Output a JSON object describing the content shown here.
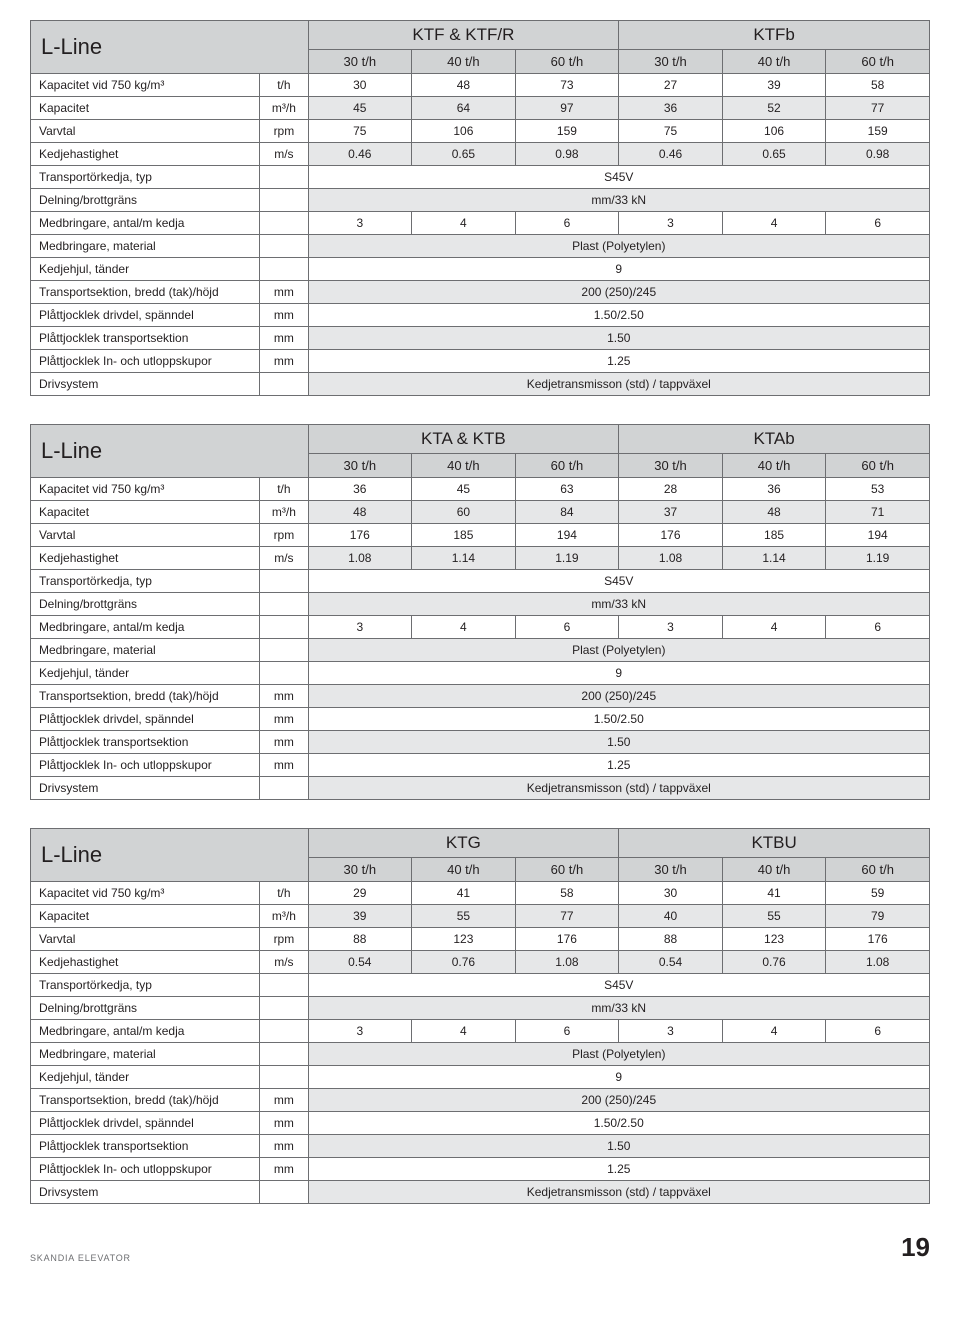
{
  "footer": {
    "brand": "SKANDIA ELEVATOR",
    "page": "19"
  },
  "common": {
    "table_title": "L-Line",
    "sub_headers": [
      "30 t/h",
      "40 t/h",
      "60 t/h",
      "30 t/h",
      "40 t/h",
      "60 t/h"
    ],
    "span_rows": {
      "transport_type": {
        "label": "Transportörkedja, typ",
        "value": "S45V"
      },
      "delning": {
        "label": "Delning/brottgräns",
        "value": "mm/33 kN"
      },
      "medbringare_antal": {
        "label": "Medbringare, antal/m kedja",
        "vals": [
          "3",
          "4",
          "6",
          "3",
          "4",
          "6"
        ]
      },
      "medbringare_material": {
        "label": "Medbringare, material",
        "value": "Plast (Polyetylen)"
      },
      "kedjehjul": {
        "label": "Kedjehjul, tänder",
        "value": "9"
      },
      "transportsektion": {
        "label": "Transportsektion, bredd (tak)/höjd",
        "unit": "mm",
        "value": "200 (250)/245"
      },
      "plat_drivdel": {
        "label": "Plåttjocklek drivdel, spänndel",
        "unit": "mm",
        "value": "1.50/2.50"
      },
      "plat_transport": {
        "label": "Plåttjocklek transportsektion",
        "unit": "mm",
        "value": "1.50"
      },
      "plat_inut": {
        "label": "Plåttjocklek In- och utloppskupor",
        "unit": "mm",
        "value": "1.25"
      },
      "drivsystem": {
        "label": "Drivsystem",
        "value": "Kedjetransmisson (std) / tappväxel"
      }
    },
    "data_row_labels": {
      "kapacitet750": {
        "label": "Kapacitet vid 750 kg/m³",
        "unit": "t/h"
      },
      "kapacitet": {
        "label": "Kapacitet",
        "unit": "m³/h"
      },
      "varvtal": {
        "label": "Varvtal",
        "unit": "rpm"
      },
      "kedjehastighet": {
        "label": "Kedjehastighet",
        "unit": "m/s"
      }
    }
  },
  "tables": [
    {
      "group1": "KTF & KTF/R",
      "group2": "KTFb",
      "kapacitet750": [
        "30",
        "48",
        "73",
        "27",
        "39",
        "58"
      ],
      "kapacitet": [
        "45",
        "64",
        "97",
        "36",
        "52",
        "77"
      ],
      "varvtal": [
        "75",
        "106",
        "159",
        "75",
        "106",
        "159"
      ],
      "kedjehastighet": [
        "0.46",
        "0.65",
        "0.98",
        "0.46",
        "0.65",
        "0.98"
      ]
    },
    {
      "group1": "KTA & KTB",
      "group2": "KTAb",
      "kapacitet750": [
        "36",
        "45",
        "63",
        "28",
        "36",
        "53"
      ],
      "kapacitet": [
        "48",
        "60",
        "84",
        "37",
        "48",
        "71"
      ],
      "varvtal": [
        "176",
        "185",
        "194",
        "176",
        "185",
        "194"
      ],
      "kedjehastighet": [
        "1.08",
        "1.14",
        "1.19",
        "1.08",
        "1.14",
        "1.19"
      ]
    },
    {
      "group1": "KTG",
      "group2": "KTBU",
      "kapacitet750": [
        "29",
        "41",
        "58",
        "30",
        "41",
        "59"
      ],
      "kapacitet": [
        "39",
        "55",
        "77",
        "40",
        "55",
        "79"
      ],
      "varvtal": [
        "88",
        "123",
        "176",
        "88",
        "123",
        "176"
      ],
      "kedjehastighet": [
        "0.54",
        "0.76",
        "1.08",
        "0.54",
        "0.76",
        "1.08"
      ]
    }
  ],
  "colors": {
    "header_bg": "#d1d3d4",
    "row_grey": "#e6e7e8",
    "row_white": "#ffffff",
    "border": "#6d6e71",
    "text": "#231f20"
  }
}
